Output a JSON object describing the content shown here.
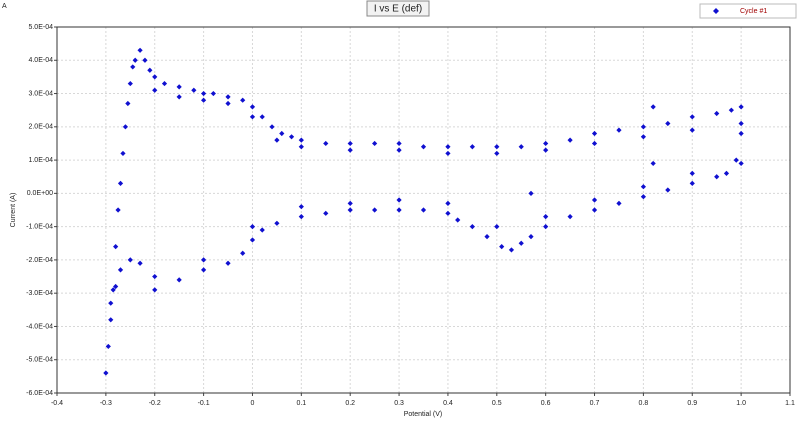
{
  "chart_data": {
    "type": "scatter",
    "panel_label": "A",
    "title": "I vs E (def)",
    "x_label": "Potential (V)",
    "y_label": "Current (A)",
    "legend": "top-right",
    "grid": true,
    "xlim": [
      -0.4,
      1.1
    ],
    "xticks": [
      -0.4,
      -0.3,
      -0.2,
      -0.1,
      0,
      0.1,
      0.2,
      0.3,
      0.4,
      0.5,
      0.6,
      0.7,
      0.8,
      0.9,
      {
        "value": 1,
        "label": "1.0"
      },
      1.1
    ],
    "ylim": [
      -0.0006,
      0.0005
    ],
    "yticks": [
      {
        "value": 0.0005,
        "label": "5.0E-04"
      },
      {
        "value": 0.0004,
        "label": "4.0E-04"
      },
      {
        "value": 0.0003,
        "label": "3.0E-04"
      },
      {
        "value": 0.0002,
        "label": "2.0E-04"
      },
      {
        "value": 0.0001,
        "label": "1.0E-04"
      },
      {
        "value": 0,
        "label": "0.0E+00"
      },
      {
        "value": -0.0001,
        "label": "-1.0E-04"
      },
      {
        "value": -0.0002,
        "label": "-2.0E-04"
      },
      {
        "value": -0.0003,
        "label": "-3.0E-04"
      },
      {
        "value": -0.0004,
        "label": "-4.0E-04"
      },
      {
        "value": -0.0005,
        "label": "-5.0E-04"
      },
      {
        "value": -0.0006,
        "label": "-6.0E-04"
      }
    ],
    "x": [
      -0.3,
      -0.295,
      -0.29,
      -0.285,
      -0.28,
      -0.275,
      -0.27,
      -0.265,
      -0.26,
      -0.255,
      -0.25,
      -0.245,
      -0.24,
      -0.23,
      -0.22,
      -0.21,
      -0.2,
      -0.18,
      -0.15,
      -0.12,
      -0.1,
      -0.08,
      -0.05,
      -0.02,
      0.0,
      0.02,
      0.04,
      0.06,
      0.08,
      0.1,
      0.15,
      0.2,
      0.25,
      0.3,
      0.35,
      0.4,
      0.45,
      0.5,
      0.55,
      0.6,
      0.65,
      0.7,
      0.75,
      0.8,
      0.85,
      0.9,
      0.95,
      0.98,
      1.0,
      -0.2,
      -0.15,
      -0.1,
      -0.05,
      0.0,
      0.05,
      0.1,
      0.2,
      0.3,
      0.4,
      0.5,
      0.6,
      0.7,
      0.8,
      0.9,
      1.0,
      1.0,
      0.99,
      0.97,
      0.95,
      0.9,
      0.85,
      0.8,
      0.75,
      0.7,
      0.65,
      0.6,
      0.57,
      0.55,
      0.53,
      0.51,
      0.48,
      0.45,
      0.42,
      0.4,
      0.35,
      0.3,
      0.25,
      0.2,
      0.15,
      0.1,
      0.05,
      0.02,
      0.0,
      -0.02,
      -0.05,
      -0.1,
      -0.15,
      -0.2,
      -0.23,
      -0.25,
      -0.27,
      -0.28,
      -0.29,
      1.0,
      0.9,
      0.8,
      0.7,
      0.6,
      0.5,
      0.4,
      0.3,
      0.2,
      0.1,
      0.0,
      -0.1,
      -0.2,
      0.57,
      0.82,
      0.82
    ],
    "series": [
      {
        "name": "Cycle #1",
        "color": "#1010d0",
        "values": [
          -0.00054,
          -0.00046,
          -0.00038,
          -0.00029,
          -0.00016,
          -5e-05,
          3e-05,
          0.00012,
          0.0002,
          0.00027,
          0.00033,
          0.00038,
          0.0004,
          0.00043,
          0.0004,
          0.00037,
          0.00035,
          0.00033,
          0.00032,
          0.00031,
          0.0003,
          0.0003,
          0.00029,
          0.00028,
          0.00026,
          0.00023,
          0.0002,
          0.00018,
          0.00017,
          0.00016,
          0.00015,
          0.00015,
          0.00015,
          0.00015,
          0.00014,
          0.00014,
          0.00014,
          0.00014,
          0.00014,
          0.00015,
          0.00016,
          0.00018,
          0.00019,
          0.0002,
          0.00021,
          0.00023,
          0.00024,
          0.00025,
          0.00026,
          0.00031,
          0.00029,
          0.00028,
          0.00027,
          0.00023,
          0.00016,
          0.00014,
          0.00013,
          0.00013,
          0.00012,
          0.00012,
          0.00013,
          0.00015,
          0.00017,
          0.00019,
          0.00021,
          0.00018,
          0.0001,
          6e-05,
          5e-05,
          3e-05,
          1e-05,
          -1e-05,
          -3e-05,
          -5e-05,
          -7e-05,
          -0.0001,
          -0.00013,
          -0.00015,
          -0.00017,
          -0.00016,
          -0.00013,
          -0.0001,
          -8e-05,
          -6e-05,
          -5e-05,
          -5e-05,
          -5e-05,
          -5e-05,
          -6e-05,
          -7e-05,
          -9e-05,
          -0.00011,
          -0.00014,
          -0.00018,
          -0.00021,
          -0.00023,
          -0.00026,
          -0.00025,
          -0.00021,
          -0.0002,
          -0.00023,
          -0.00028,
          -0.00033,
          9e-05,
          6e-05,
          2e-05,
          -2e-05,
          -7e-05,
          -0.0001,
          -3e-05,
          -2e-05,
          -3e-05,
          -4e-05,
          -0.0001,
          -0.0002,
          -0.00029,
          0.0,
          0.00026,
          9e-05
        ]
      }
    ]
  }
}
